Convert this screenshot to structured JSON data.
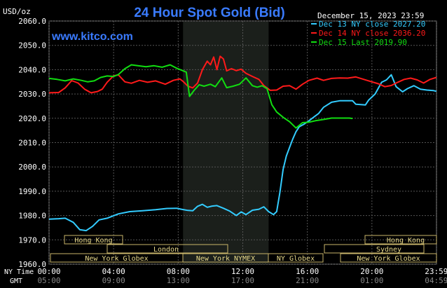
{
  "chart_data": {
    "type": "line",
    "title": "24 Hour Spot Gold (Bid)",
    "unit_label": "USD/oz",
    "watermark": "www.kitco.com",
    "date_label": "December 15, 2023 23:59",
    "ylim": [
      1960,
      2060
    ],
    "yticks": [
      "2060.0",
      "2050.0",
      "2040.0",
      "2030.0",
      "2020.0",
      "2010.0",
      "2000.0",
      "1990.0",
      "1980.0",
      "1970.0",
      "1960.0"
    ],
    "grid": true,
    "legend_position": "top-right",
    "x_row_ny_label": "NY Time",
    "x_row_gmt_label": "GMT",
    "xticks_ny": [
      "00:00",
      "04:00",
      "08:00",
      "12:00",
      "16:00",
      "20:00",
      "23:59"
    ],
    "xticks_gmt": [
      "05:00",
      "09:00",
      "13:00",
      "17:00",
      "21:00",
      "01:00",
      "04:59"
    ],
    "xlim": [
      0,
      24
    ],
    "shaded_window": [
      8.3,
      13.6
    ],
    "series": [
      {
        "name": "Dec 13 NY close 2027.20",
        "color": "#33ccff",
        "points": [
          [
            0,
            1978.5
          ],
          [
            0.6,
            1978.7
          ],
          [
            1.0,
            1978.9
          ],
          [
            1.5,
            1977.2
          ],
          [
            1.9,
            1974.2
          ],
          [
            2.3,
            1973.8
          ],
          [
            2.7,
            1975.6
          ],
          [
            3.1,
            1978.2
          ],
          [
            3.6,
            1978.9
          ],
          [
            4.3,
            1980.7
          ],
          [
            5.0,
            1981.6
          ],
          [
            5.8,
            1982.0
          ],
          [
            6.6,
            1982.4
          ],
          [
            7.3,
            1982.9
          ],
          [
            7.9,
            1983.0
          ],
          [
            8.2,
            1982.6
          ],
          [
            8.6,
            1982.1
          ],
          [
            8.9,
            1982.0
          ],
          [
            9.2,
            1983.8
          ],
          [
            9.5,
            1984.6
          ],
          [
            9.8,
            1983.4
          ],
          [
            10.1,
            1983.9
          ],
          [
            10.4,
            1984.1
          ],
          [
            10.8,
            1983.0
          ],
          [
            11.2,
            1981.8
          ],
          [
            11.6,
            1980.0
          ],
          [
            11.9,
            1981.5
          ],
          [
            12.2,
            1980.4
          ],
          [
            12.6,
            1982.2
          ],
          [
            13.0,
            1982.6
          ],
          [
            13.3,
            1983.6
          ],
          [
            13.6,
            1981.6
          ],
          [
            13.9,
            1980.4
          ],
          [
            14.1,
            1981.6
          ],
          [
            14.3,
            1989.5
          ],
          [
            14.5,
            1999.0
          ],
          [
            14.7,
            2004.5
          ],
          [
            14.9,
            2008.0
          ],
          [
            15.1,
            2011.5
          ],
          [
            15.3,
            2014.5
          ],
          [
            15.5,
            2016.5
          ],
          [
            15.8,
            2017.6
          ],
          [
            16.1,
            2019.0
          ],
          [
            16.4,
            2020.5
          ],
          [
            16.7,
            2022.0
          ],
          [
            17.0,
            2024.5
          ],
          [
            17.5,
            2026.6
          ],
          [
            18.0,
            2027.2
          ],
          [
            18.8,
            2027.2
          ],
          [
            19.0,
            2025.8
          ],
          [
            19.6,
            2025.5
          ],
          [
            19.8,
            2027.5
          ],
          [
            20.2,
            2030.0
          ],
          [
            20.6,
            2034.8
          ],
          [
            20.9,
            2035.8
          ],
          [
            21.2,
            2037.9
          ],
          [
            21.5,
            2033.0
          ],
          [
            21.9,
            2030.9
          ],
          [
            22.2,
            2032.2
          ],
          [
            22.6,
            2033.4
          ],
          [
            23.0,
            2032.0
          ],
          [
            23.4,
            2031.6
          ],
          [
            23.8,
            2031.4
          ],
          [
            23.99,
            2031.1
          ]
        ]
      },
      {
        "name": "Dec 14 NY close 2036.20",
        "color": "#ff1a1a",
        "points": [
          [
            0,
            2030.5
          ],
          [
            0.6,
            2030.6
          ],
          [
            1.0,
            2032.5
          ],
          [
            1.4,
            2035.5
          ],
          [
            1.8,
            2034.5
          ],
          [
            2.2,
            2032.0
          ],
          [
            2.6,
            2030.5
          ],
          [
            3.0,
            2031.0
          ],
          [
            3.3,
            2032.0
          ],
          [
            3.6,
            2034.8
          ],
          [
            4.0,
            2037.5
          ],
          [
            4.3,
            2037.8
          ],
          [
            4.7,
            2035.0
          ],
          [
            5.1,
            2034.4
          ],
          [
            5.6,
            2035.6
          ],
          [
            6.1,
            2034.8
          ],
          [
            6.6,
            2035.4
          ],
          [
            7.2,
            2034.0
          ],
          [
            7.7,
            2035.6
          ],
          [
            8.1,
            2036.2
          ],
          [
            8.3,
            2035.2
          ],
          [
            8.6,
            2033.2
          ],
          [
            8.9,
            2032.5
          ],
          [
            9.2,
            2034.5
          ],
          [
            9.5,
            2040.0
          ],
          [
            9.8,
            2043.5
          ],
          [
            10.0,
            2042.0
          ],
          [
            10.2,
            2045.2
          ],
          [
            10.4,
            2040.0
          ],
          [
            10.6,
            2045.5
          ],
          [
            10.8,
            2044.4
          ],
          [
            11.0,
            2039.5
          ],
          [
            11.3,
            2040.4
          ],
          [
            11.6,
            2039.6
          ],
          [
            11.9,
            2040.2
          ],
          [
            12.2,
            2038.5
          ],
          [
            12.6,
            2037.2
          ],
          [
            13.0,
            2036.0
          ],
          [
            13.3,
            2033.5
          ],
          [
            13.7,
            2031.5
          ],
          [
            14.1,
            2031.6
          ],
          [
            14.5,
            2033.2
          ],
          [
            14.9,
            2033.4
          ],
          [
            15.3,
            2032.0
          ],
          [
            15.7,
            2034.0
          ],
          [
            16.1,
            2035.6
          ],
          [
            16.6,
            2036.5
          ],
          [
            17.0,
            2035.6
          ],
          [
            17.5,
            2036.4
          ],
          [
            18.0,
            2036.6
          ],
          [
            18.5,
            2036.5
          ],
          [
            19.0,
            2037.0
          ],
          [
            19.5,
            2036.0
          ],
          [
            20.0,
            2035.0
          ],
          [
            20.4,
            2034.2
          ],
          [
            20.8,
            2033.0
          ],
          [
            21.2,
            2033.5
          ],
          [
            21.6,
            2034.8
          ],
          [
            22.0,
            2036.0
          ],
          [
            22.4,
            2036.5
          ],
          [
            22.8,
            2035.8
          ],
          [
            23.2,
            2034.5
          ],
          [
            23.6,
            2036.0
          ],
          [
            23.99,
            2036.8
          ]
        ]
      },
      {
        "name": "Dec 15 Last 2019.90",
        "color": "#11dd11",
        "points": [
          [
            0,
            2036.4
          ],
          [
            0.5,
            2036.0
          ],
          [
            1.0,
            2035.4
          ],
          [
            1.5,
            2036.2
          ],
          [
            2.0,
            2035.6
          ],
          [
            2.4,
            2035.0
          ],
          [
            2.8,
            2035.4
          ],
          [
            3.2,
            2036.8
          ],
          [
            3.6,
            2037.4
          ],
          [
            4.0,
            2037.2
          ],
          [
            4.3,
            2038.0
          ],
          [
            4.7,
            2040.4
          ],
          [
            5.1,
            2042.0
          ],
          [
            5.5,
            2041.6
          ],
          [
            6.0,
            2041.2
          ],
          [
            6.5,
            2041.6
          ],
          [
            7.0,
            2041.0
          ],
          [
            7.5,
            2042.0
          ],
          [
            7.9,
            2040.6
          ],
          [
            8.2,
            2039.8
          ],
          [
            8.5,
            2039.0
          ],
          [
            8.7,
            2029.0
          ],
          [
            9.0,
            2031.6
          ],
          [
            9.3,
            2033.8
          ],
          [
            9.6,
            2033.2
          ],
          [
            10.0,
            2034.0
          ],
          [
            10.3,
            2033.0
          ],
          [
            10.7,
            2036.6
          ],
          [
            11.0,
            2032.6
          ],
          [
            11.4,
            2033.2
          ],
          [
            11.8,
            2034.0
          ],
          [
            12.2,
            2036.6
          ],
          [
            12.6,
            2033.4
          ],
          [
            12.9,
            2032.8
          ],
          [
            13.2,
            2033.4
          ],
          [
            13.5,
            2032.2
          ],
          [
            13.8,
            2025.6
          ],
          [
            14.1,
            2022.6
          ],
          [
            14.5,
            2020.4
          ],
          [
            14.9,
            2018.6
          ],
          [
            15.3,
            2016.0
          ],
          [
            15.7,
            2018.2
          ],
          [
            16.1,
            2018.4
          ],
          [
            16.5,
            2019.0
          ],
          [
            17.0,
            2019.5
          ],
          [
            17.5,
            2020.1
          ],
          [
            18.0,
            2020.1
          ],
          [
            18.6,
            2020.1
          ],
          [
            18.8,
            2019.9
          ]
        ]
      }
    ],
    "sessions": [
      {
        "label": "Hong Kong",
        "start": 0,
        "end": 8.0,
        "row": 1
      },
      {
        "label": "London",
        "start": 6.0,
        "end": 17.0,
        "row": 2
      },
      {
        "label": "New York Globex",
        "start": 0,
        "end": 13.0,
        "row": 3
      },
      {
        "label": "New York NYMEX",
        "start": 13.0,
        "end": 21.0,
        "row": 3
      },
      {
        "label": "NY Globex",
        "start": 21.0,
        "end": 17.0,
        "row": 3
      },
      {
        "label": "Hong Kong",
        "start": 20.0,
        "end": 23.99,
        "row": 1
      },
      {
        "label": "Sydney",
        "start": 18.2,
        "end": 23.5,
        "row": 2
      },
      {
        "label": "New York Globex",
        "start": 18.0,
        "end": 23.99,
        "row": 3
      }
    ]
  }
}
